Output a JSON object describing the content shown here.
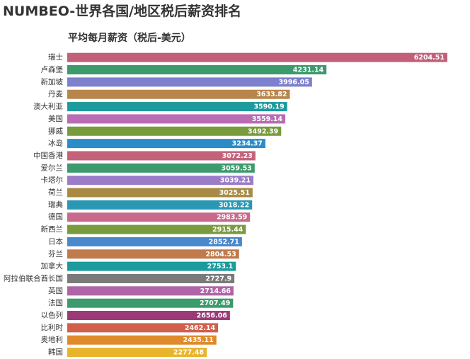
{
  "chart_data": {
    "type": "hbar",
    "title": "NUMBEO-世界各国/地区税后薪资排名",
    "subtitle": "平均每月薪资（税后-美元）",
    "categories": [
      "瑞士",
      "卢森堡",
      "新加坡",
      "丹麦",
      "澳大利亚",
      "美国",
      "挪威",
      "冰岛",
      "中国香港",
      "爱尔兰",
      "卡塔尔",
      "荷兰",
      "瑞典",
      "德国",
      "新西兰",
      "日本",
      "芬兰",
      "加拿大",
      "阿拉伯联合酋长国",
      "英国",
      "法国",
      "以色列",
      "比利时",
      "奥地利",
      "韩国"
    ],
    "values": [
      6204.51,
      4231.14,
      3996.05,
      3633.82,
      3590.19,
      3559.14,
      3492.39,
      3234.37,
      3072.23,
      3059.53,
      3039.21,
      3025.51,
      3018.22,
      2983.59,
      2915.44,
      2852.71,
      2804.53,
      2753.1,
      2727.9,
      2714.66,
      2707.49,
      2656.06,
      2462.14,
      2435.11,
      2277.48
    ],
    "colors": [
      "#c2607a",
      "#3c9a6c",
      "#7d80cc",
      "#b8864c",
      "#1c9a9c",
      "#b96cb4",
      "#7a9a3e",
      "#2b8cc8",
      "#c4627a",
      "#3c9a6c",
      "#9b7cc8",
      "#a88a44",
      "#2a98b4",
      "#c86a8c",
      "#7a9a3e",
      "#4a88cc",
      "#c07a4c",
      "#1c9a9c",
      "#7a7a7a",
      "#b064a8",
      "#3c9a6c",
      "#9c3a78",
      "#d0604c",
      "#e08a2c",
      "#e8b42c"
    ]
  }
}
